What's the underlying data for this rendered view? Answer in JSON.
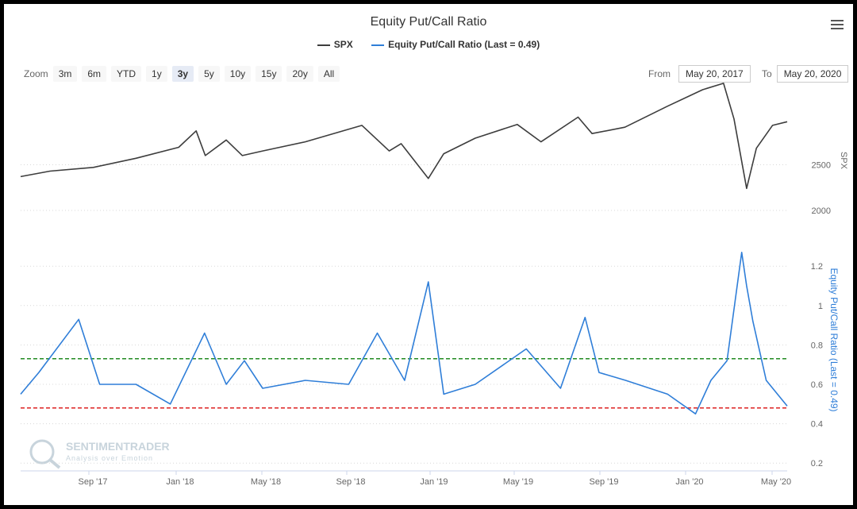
{
  "title": "Equity Put/Call Ratio",
  "legend": {
    "spx_label": "SPX",
    "pcr_label": "Equity Put/Call Ratio (Last = 0.49)"
  },
  "colors": {
    "spx": "#3d3d3d",
    "pcr": "#2f7ed8",
    "upper_band": "#228b22",
    "lower_band": "#dd2222",
    "grid": "#d8d8d8"
  },
  "zoom": {
    "label": "Zoom",
    "buttons": [
      "3m",
      "6m",
      "YTD",
      "1y",
      "3y",
      "5y",
      "10y",
      "15y",
      "20y",
      "All"
    ],
    "active": "3y"
  },
  "range": {
    "from_label": "From",
    "from_value": "May 20, 2017",
    "to_label": "To",
    "to_value": "May 20, 2020"
  },
  "watermark": {
    "name": "SENTIMENTRADER",
    "tagline": "Analysis over Emotion"
  },
  "chart_data": [
    {
      "type": "line",
      "name": "SPX",
      "ylabel": "SPX",
      "ylim": [
        1800,
        3450
      ],
      "yticks": [
        2000,
        2500
      ],
      "x": [
        "2017-05-20",
        "2017-07-01",
        "2017-09-01",
        "2017-11-01",
        "2018-01-01",
        "2018-01-26",
        "2018-02-08",
        "2018-03-10",
        "2018-04-02",
        "2018-05-01",
        "2018-07-01",
        "2018-09-20",
        "2018-10-29",
        "2018-11-15",
        "2018-12-24",
        "2019-01-15",
        "2019-03-01",
        "2019-04-30",
        "2019-06-03",
        "2019-07-26",
        "2019-08-15",
        "2019-10-01",
        "2019-12-01",
        "2020-01-20",
        "2020-02-19",
        "2020-03-05",
        "2020-03-23",
        "2020-04-06",
        "2020-04-29",
        "2020-05-20"
      ],
      "values": [
        2370,
        2430,
        2470,
        2570,
        2690,
        2870,
        2600,
        2770,
        2600,
        2650,
        2750,
        2930,
        2650,
        2730,
        2350,
        2620,
        2790,
        2940,
        2750,
        3020,
        2840,
        2910,
        3140,
        3320,
        3390,
        3000,
        2240,
        2680,
        2930,
        2970
      ]
    },
    {
      "type": "line",
      "name": "Equity Put/Call Ratio (Last = 0.49)",
      "ylabel": "Equity Put/Call Ratio (Last = 0.49)",
      "ylim": [
        0.1,
        1.35
      ],
      "yticks": [
        0.2,
        0.4,
        0.6,
        0.8,
        1,
        1.2
      ],
      "x": [
        "2017-05-20",
        "2017-06-15",
        "2017-08-11",
        "2017-09-10",
        "2017-11-01",
        "2017-12-20",
        "2018-02-07",
        "2018-03-10",
        "2018-04-05",
        "2018-05-01",
        "2018-07-01",
        "2018-09-01",
        "2018-10-12",
        "2018-11-20",
        "2018-12-24",
        "2019-01-15",
        "2019-03-01",
        "2019-05-13",
        "2019-07-01",
        "2019-08-05",
        "2019-08-25",
        "2019-10-02",
        "2019-12-01",
        "2020-01-10",
        "2020-02-01",
        "2020-02-24",
        "2020-03-16",
        "2020-03-23",
        "2020-04-01",
        "2020-04-20",
        "2020-05-20"
      ],
      "values": [
        0.55,
        0.66,
        0.93,
        0.6,
        0.6,
        0.5,
        0.86,
        0.6,
        0.72,
        0.58,
        0.62,
        0.6,
        0.86,
        0.62,
        1.12,
        0.55,
        0.6,
        0.78,
        0.58,
        0.94,
        0.66,
        0.62,
        0.55,
        0.45,
        0.62,
        0.72,
        1.27,
        1.1,
        0.92,
        0.62,
        0.49
      ],
      "reference_lines": [
        0.73,
        0.48
      ]
    }
  ],
  "x_axis": {
    "ticks": [
      "Sep '17",
      "Jan '18",
      "May '18",
      "Sep '18",
      "Jan '19",
      "May '19",
      "Sep '19",
      "Jan '20",
      "May '20"
    ]
  }
}
